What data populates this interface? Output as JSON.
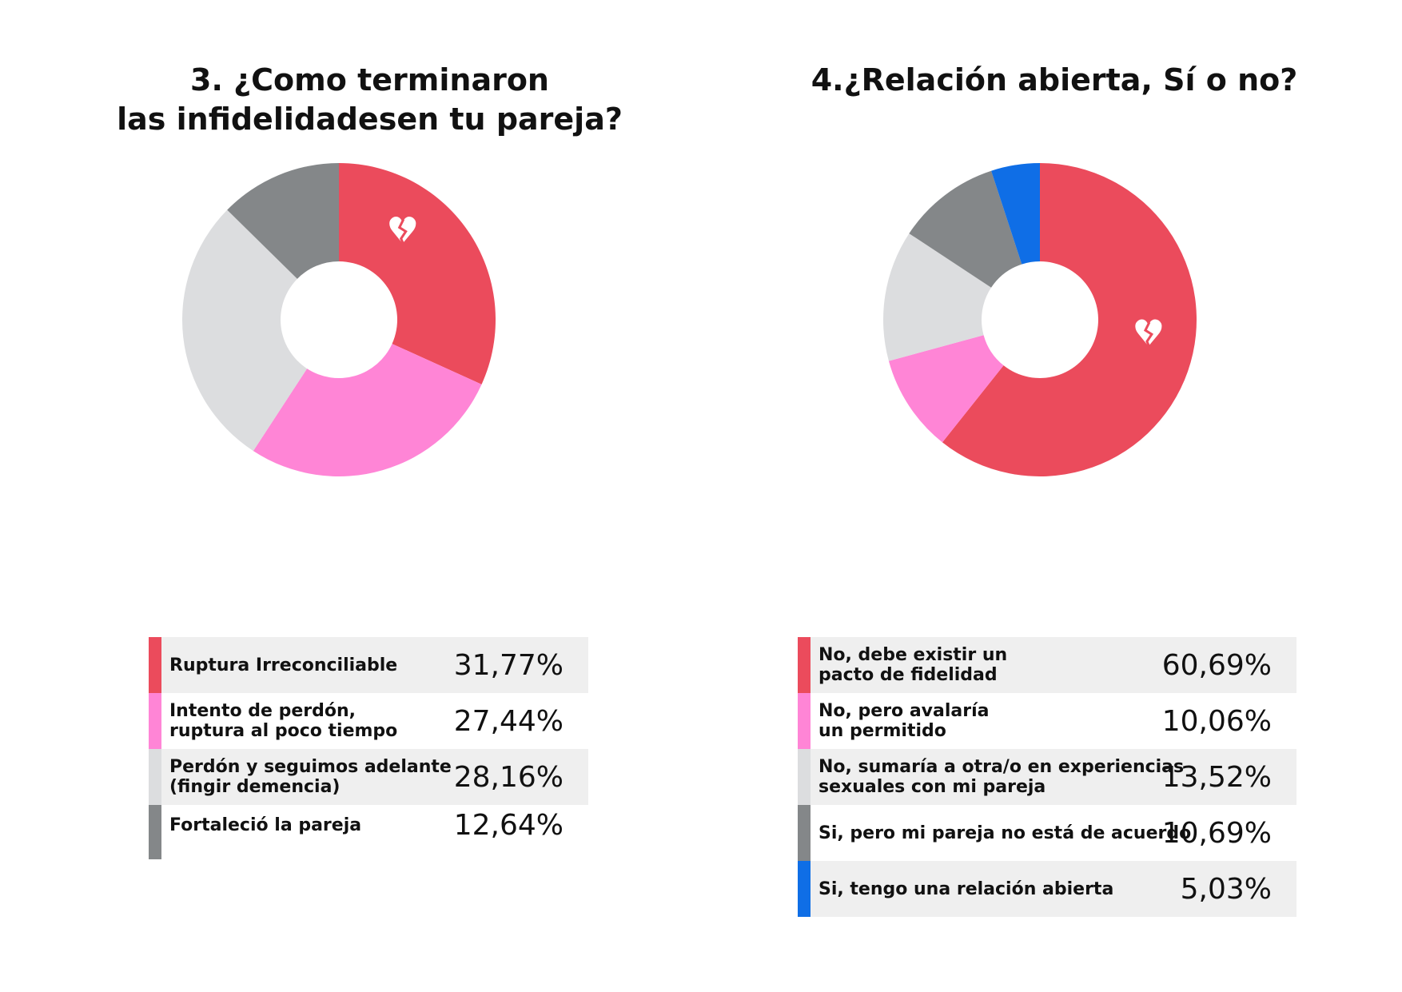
{
  "charts": [
    {
      "title_lines": [
        "3. ¿Como terminaron",
        "las infidelidadesen tu pareja?"
      ],
      "icon": "broken-heart-icon",
      "icon_on_series": 0,
      "legend_rows": [
        {
          "label_lines": [
            "Ruptura Irreconciliable"
          ],
          "value_text": "31,77%"
        },
        {
          "label_lines": [
            "Intento de perdón,",
            "ruptura al poco tiempo"
          ],
          "value_text": "27,44%"
        },
        {
          "label_lines": [
            "Perdón y seguimos adelante",
            "(fingir demencia)"
          ],
          "value_text": "28,16%"
        },
        {
          "label_lines": [
            "Fortaleció la pareja"
          ],
          "value_text": "12,64%"
        }
      ]
    },
    {
      "title_lines": [
        "4.¿Relación abierta, Sí o no?"
      ],
      "icon": "broken-heart-icon",
      "icon_on_series": 0,
      "legend_rows": [
        {
          "label_lines": [
            "No, debe existir un",
            "pacto de fidelidad"
          ],
          "value_text": "60,69%"
        },
        {
          "label_lines": [
            "No, pero avalaría",
            "un permitido"
          ],
          "value_text": "10,06%"
        },
        {
          "label_lines": [
            "No, sumaría a otra/o en experiencias",
            "sexuales con mi pareja"
          ],
          "value_text": "13,52%"
        },
        {
          "label_lines": [
            "Si, pero mi pareja no está de acuerdo"
          ],
          "value_text": "10,69%"
        },
        {
          "label_lines": [
            "Si, tengo una relación abierta"
          ],
          "value_text": "5,03%"
        }
      ]
    }
  ],
  "chart_data": [
    {
      "type": "pie",
      "donut": true,
      "title": "3. ¿Como terminaron las infidelidadesen tu pareja?",
      "categories": [
        "Ruptura Irreconciliable",
        "Intento de perdón, ruptura al poco tiempo",
        "Perdón y seguimos adelante (fingir demencia)",
        "Fortaleció la pareja"
      ],
      "values": [
        31.77,
        27.44,
        28.16,
        12.64
      ],
      "colors": [
        "#eb4b5c",
        "#ff85d6",
        "#dcdddf",
        "#848789"
      ],
      "start": "top",
      "direction": "clockwise",
      "legend": "bottom"
    },
    {
      "type": "pie",
      "donut": true,
      "title": "4.¿Relación abierta, Sí o no?",
      "categories": [
        "No, debe existir un pacto de fidelidad",
        "No, pero avalaría un permitido",
        "No, sumaría a otra/o en experiencias sexuales con mi pareja",
        "Si, pero mi pareja no está de acuerdo",
        "Si, tengo una relación abierta"
      ],
      "values": [
        60.69,
        10.06,
        13.52,
        10.69,
        5.03
      ],
      "colors": [
        "#eb4b5c",
        "#ff85d6",
        "#dcdddf",
        "#848789",
        "#0f6ee6"
      ],
      "start": "top",
      "direction": "clockwise",
      "legend": "bottom"
    }
  ]
}
